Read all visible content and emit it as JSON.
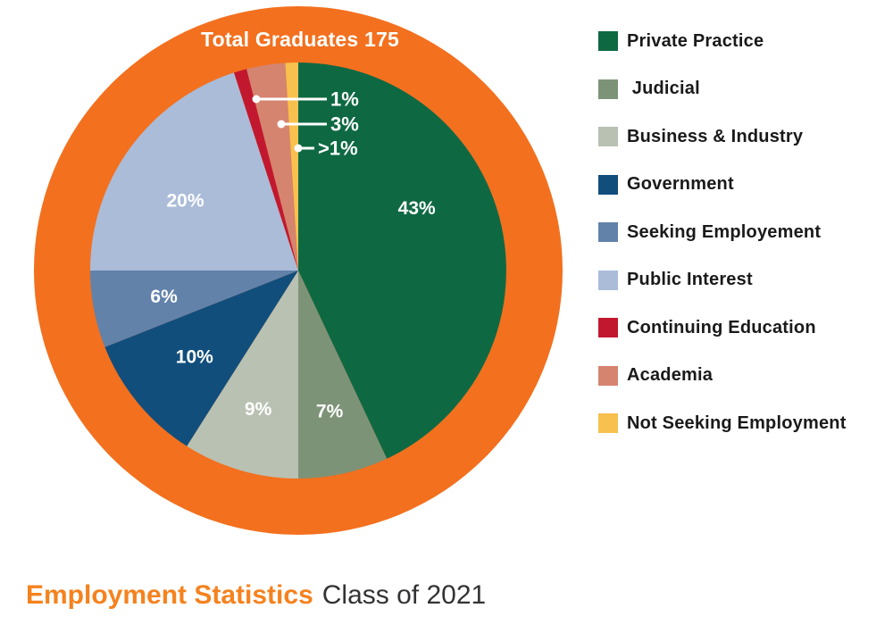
{
  "chart_data": {
    "type": "pie",
    "center_label": "Total Graduates 175",
    "total_graduates": 175,
    "legend_position": "right",
    "value_labels_inside": true,
    "slices": [
      {
        "label": "Private Practice",
        "value": 43,
        "display": "43%",
        "color": "#0E6943"
      },
      {
        "label": " Judicial",
        "value": 7,
        "display": "7%",
        "color": "#7D9377"
      },
      {
        "label": "Business & Industry",
        "value": 9,
        "display": "9%",
        "color": "#B9C1B2"
      },
      {
        "label": "Government",
        "value": 10,
        "display": "10%",
        "color": "#114E7C"
      },
      {
        "label": "Seeking Employement",
        "value": 6,
        "display": "6%",
        "color": "#6282AA"
      },
      {
        "label": "Public Interest",
        "value": 20,
        "display": "20%",
        "color": "#ABBCD9"
      },
      {
        "label": "Continuing Education",
        "value": 1,
        "display": "1%",
        "color": "#C2182F",
        "callout": true
      },
      {
        "label": "Academia",
        "value": 3,
        "display": "3%",
        "color": "#D5846F",
        "callout": true
      },
      {
        "label": "Not Seeking Employment",
        "value": 1,
        "display": ">1%",
        "color": "#F8C04E",
        "callout": true
      }
    ]
  },
  "colors": {
    "ring": "#F3701E",
    "slice_label_text": "#FFFFFF",
    "callout_line": "#FFFFFF",
    "legend_text": "#1A1A1A",
    "caption_accent": "#F5821E",
    "caption_text": "#333335"
  },
  "caption": {
    "title": "Employment Statistics",
    "subtitle": "Class of 2021"
  }
}
